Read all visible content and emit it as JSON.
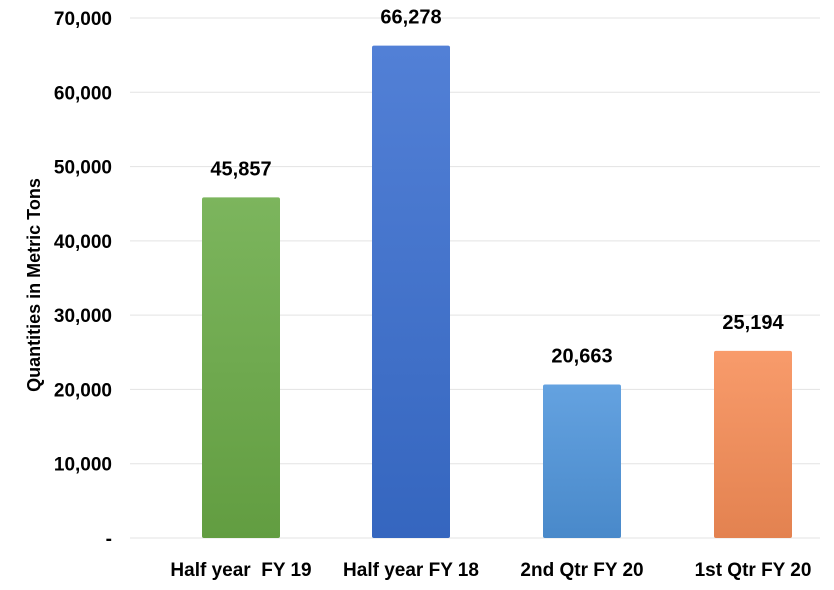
{
  "chart_data": {
    "type": "bar",
    "title": "",
    "xlabel": "",
    "ylabel": "Quantities in Metric Tons",
    "categories": [
      "Half year  FY 19",
      "Half year FY 18",
      "2nd Qtr FY 20",
      "1st Qtr FY 20"
    ],
    "values": [
      45857,
      66278,
      20663,
      25194
    ],
    "value_labels": [
      "45,857",
      "66,278",
      "20,663",
      "25,194"
    ],
    "bar_colors": [
      "#6aab47",
      "#3a6fd0",
      "#4f95dc",
      "#f78d57"
    ],
    "ylim": [
      0,
      70000
    ],
    "y_ticks": [
      {
        "value": 0,
        "label": "-"
      },
      {
        "value": 10000,
        "label": "10,000"
      },
      {
        "value": 20000,
        "label": "20,000"
      },
      {
        "value": 30000,
        "label": "30,000"
      },
      {
        "value": 40000,
        "label": "40,000"
      },
      {
        "value": 50000,
        "label": "50,000"
      },
      {
        "value": 60000,
        "label": "60,000"
      },
      {
        "value": 70000,
        "label": "70,000"
      }
    ],
    "grid": true,
    "legend": "none"
  }
}
